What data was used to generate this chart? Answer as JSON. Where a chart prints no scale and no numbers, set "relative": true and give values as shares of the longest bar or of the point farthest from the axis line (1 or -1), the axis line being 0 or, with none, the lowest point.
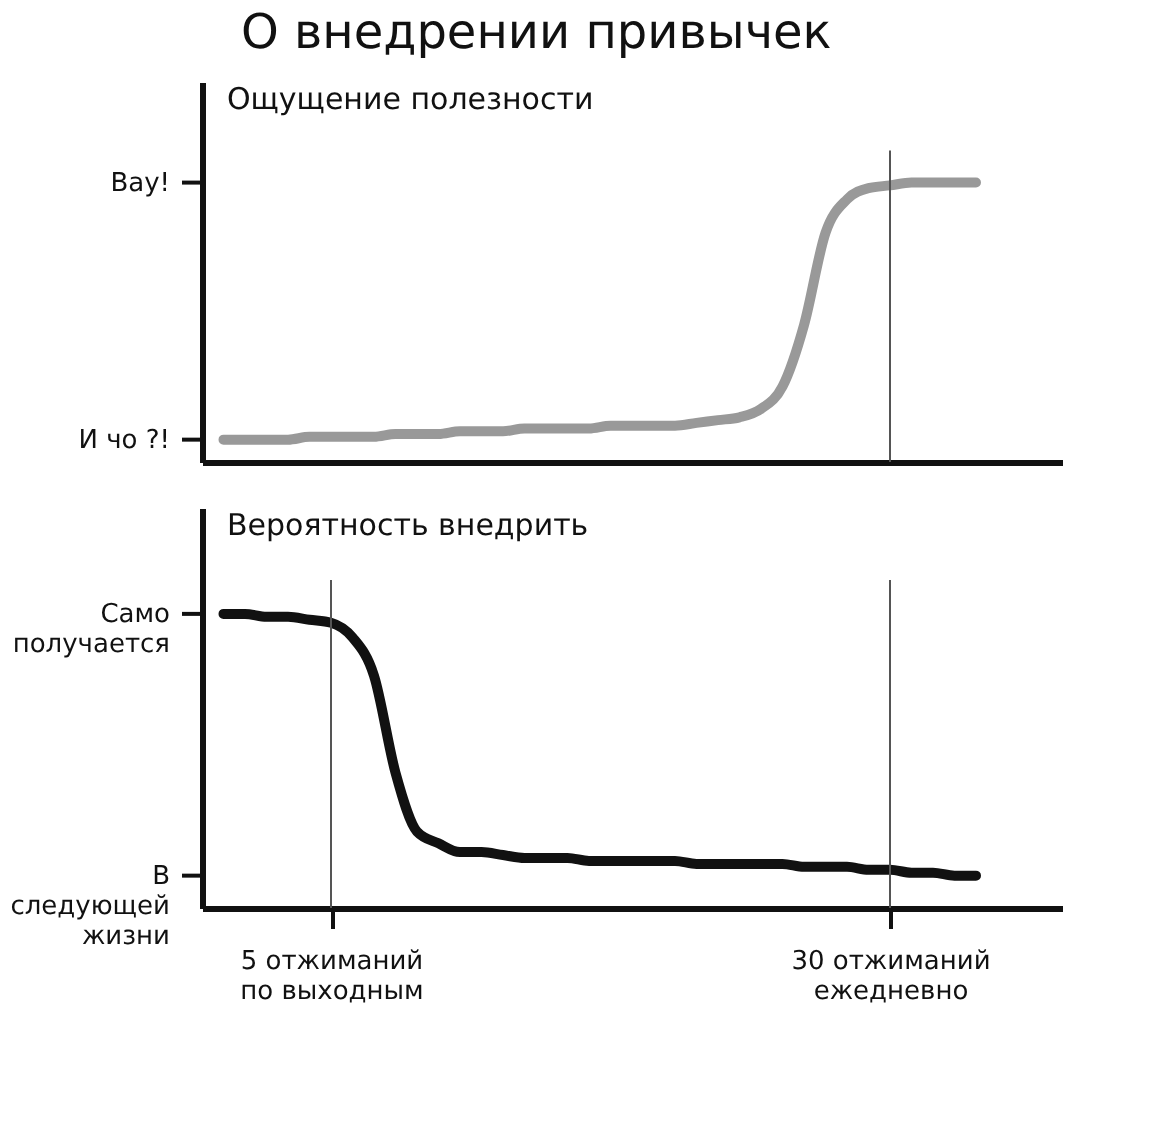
{
  "chart_data": [
    {
      "type": "line",
      "title": "О внедрении привычек",
      "ylabel": "Ощущение полезности",
      "relative": true,
      "tick_labels": false,
      "categories": [
        null,
        null,
        null,
        null,
        null,
        null,
        "5 отжиманий\nпо выходным",
        null,
        null,
        null,
        null,
        null,
        null,
        null,
        null,
        null,
        null,
        null,
        null,
        null,
        null,
        null,
        null,
        null,
        null,
        null,
        null,
        null,
        null,
        null,
        null,
        null,
        "30 отжиманий\nежедневно",
        null,
        null,
        null,
        null,
        null,
        null,
        null,
        null
      ],
      "series": [
        {
          "color": "#999999",
          "values": [
            null,
            0.08,
            0.08,
            0.08,
            0.08,
            0.09,
            0.09,
            0.09,
            0.09,
            0.1,
            0.1,
            0.1,
            0.11,
            0.11,
            0.11,
            0.12,
            0.12,
            0.12,
            0.12,
            0.13,
            0.13,
            0.13,
            0.13,
            0.14,
            0.15,
            0.16,
            0.19,
            0.27,
            0.49,
            0.82,
            0.94,
            0.98,
            0.99,
            1.0,
            1.0,
            1.0,
            1.0,
            null,
            null,
            null,
            null
          ]
        }
      ],
      "annotations": [
        "Вау!",
        "И чо ?!"
      ],
      "ref_lines": [
        {
          "axis": "x",
          "value": "30 отжиманий\nежедневно"
        }
      ]
    },
    {
      "type": "line",
      "ylabel": "Вероятность внедрить",
      "relative": true,
      "tick_labels": "x",
      "categories": [
        null,
        null,
        null,
        null,
        null,
        null,
        "5 отжиманий\nпо выходным",
        null,
        null,
        null,
        null,
        null,
        null,
        null,
        null,
        null,
        null,
        null,
        null,
        null,
        null,
        null,
        null,
        null,
        null,
        null,
        null,
        null,
        null,
        null,
        null,
        null,
        "30 отжиманий\nежедневно",
        null,
        null,
        null,
        null,
        null,
        null,
        null,
        null
      ],
      "series": [
        {
          "color": "#111111",
          "values": [
            null,
            1.0,
            1.0,
            0.99,
            0.99,
            0.98,
            0.97,
            0.92,
            0.79,
            0.46,
            0.26,
            0.22,
            0.19,
            0.19,
            0.18,
            0.17,
            0.17,
            0.17,
            0.16,
            0.16,
            0.16,
            0.16,
            0.16,
            0.15,
            0.15,
            0.15,
            0.15,
            0.15,
            0.14,
            0.14,
            0.14,
            0.13,
            0.13,
            0.12,
            0.12,
            0.11,
            0.11,
            null,
            null,
            null,
            null
          ]
        }
      ],
      "annotations": [
        "Само\nполучается",
        "В\nследующей\nжизни"
      ],
      "ref_lines": [
        {
          "axis": "x",
          "value": "5 отжиманий\nпо выходным"
        },
        {
          "axis": "x",
          "value": "30 отжиманий\nежедневно"
        }
      ]
    }
  ]
}
